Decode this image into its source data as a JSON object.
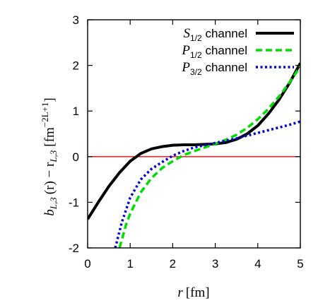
{
  "chart_data": {
    "type": "line",
    "xlabel_var": "r",
    "xlabel_unit": "[fm]",
    "ylabel_main": "b",
    "ylabel_sub1": "L,3",
    "ylabel_arg": "(r) − r",
    "ylabel_sub2": "L,3",
    "ylabel_unit": "[fm",
    "ylabel_exp": "−2L+1",
    "ylabel_close": "]",
    "xlim": [
      0,
      5
    ],
    "ylim": [
      -2,
      3
    ],
    "xticks": [
      0,
      1,
      2,
      3,
      4,
      5
    ],
    "yticks": [
      -2,
      -1,
      0,
      1,
      2,
      3
    ],
    "xtick_labels": [
      "0",
      "1",
      "2",
      "3",
      "4",
      "5"
    ],
    "ytick_labels": [
      "-2",
      "-1",
      "0",
      "1",
      "2",
      "3"
    ],
    "reference_line": {
      "y": 0,
      "color": "#ff0000"
    },
    "legend_position": "top-right",
    "series": [
      {
        "name_main": "S",
        "name_sub": "1/2",
        "name_rest": " channel",
        "color": "#000000",
        "dash": "solid",
        "x": [
          0,
          0.25,
          0.5,
          0.75,
          1.0,
          1.25,
          1.5,
          1.75,
          2.0,
          2.25,
          2.5,
          2.75,
          3.0,
          3.25,
          3.5,
          3.75,
          4.0,
          4.25,
          4.5,
          4.75,
          5.0
        ],
        "y": [
          -1.37,
          -1.0,
          -0.65,
          -0.35,
          -0.1,
          0.07,
          0.17,
          0.22,
          0.25,
          0.26,
          0.26,
          0.27,
          0.28,
          0.31,
          0.38,
          0.5,
          0.68,
          0.94,
          1.25,
          1.62,
          2.05
        ]
      },
      {
        "name_main": "P",
        "name_sub": "1/2",
        "name_rest": " channel",
        "color": "#00dd00",
        "dash": "dashed",
        "x": [
          0.75,
          0.9,
          1.0,
          1.25,
          1.5,
          1.75,
          2.0,
          2.25,
          2.5,
          2.75,
          3.0,
          3.25,
          3.5,
          3.75,
          4.0,
          4.25,
          4.5,
          4.75,
          5.0
        ],
        "y": [
          -2.0,
          -1.5,
          -1.25,
          -0.78,
          -0.47,
          -0.25,
          -0.1,
          0.03,
          0.12,
          0.2,
          0.28,
          0.37,
          0.48,
          0.63,
          0.82,
          1.05,
          1.32,
          1.63,
          1.98
        ]
      },
      {
        "name_main": "P",
        "name_sub": "3/2",
        "name_rest": " channel",
        "color": "#0000dd",
        "dash": "dotted",
        "x": [
          0.65,
          0.8,
          1.0,
          1.25,
          1.5,
          1.75,
          2.0,
          2.25,
          2.5,
          2.75,
          3.0,
          3.25,
          3.5,
          3.75,
          4.0,
          4.25,
          4.5,
          4.75,
          5.0
        ],
        "y": [
          -2.0,
          -1.45,
          -0.9,
          -0.5,
          -0.27,
          -0.12,
          0.02,
          0.12,
          0.2,
          0.25,
          0.3,
          0.35,
          0.4,
          0.46,
          0.52,
          0.58,
          0.64,
          0.7,
          0.77
        ]
      }
    ]
  }
}
